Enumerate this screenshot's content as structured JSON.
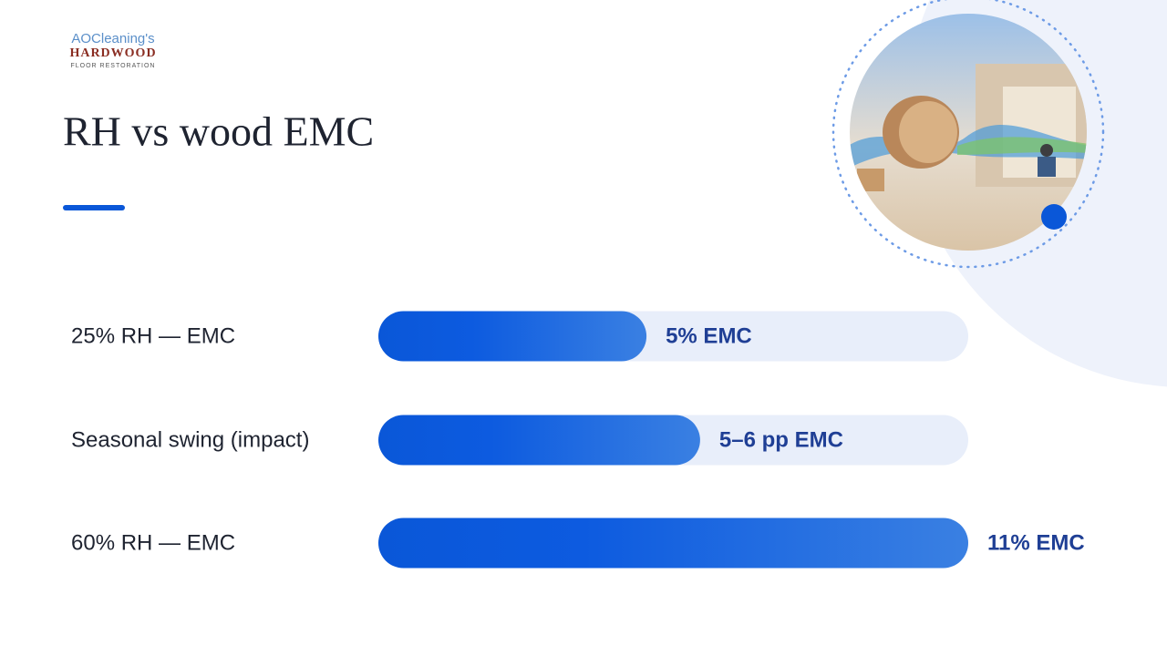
{
  "logo": {
    "line1": "AOCleaning's",
    "line2": "HARDWOOD",
    "line3": "FLOOR RESTORATION"
  },
  "chart_data": {
    "type": "bar",
    "orientation": "horizontal",
    "title": "RH vs wood EMC",
    "categories": [
      "25% RH — EMC",
      "Seasonal swing (impact)",
      "60% RH — EMC"
    ],
    "values": [
      5,
      6,
      11
    ],
    "value_labels": [
      "5% EMC",
      "5–6 pp EMC",
      "11% EMC"
    ],
    "xlim": [
      0,
      11
    ],
    "color": "#0a57d8",
    "track_color": "#e8eefa",
    "label_color": "#1f3f95"
  }
}
